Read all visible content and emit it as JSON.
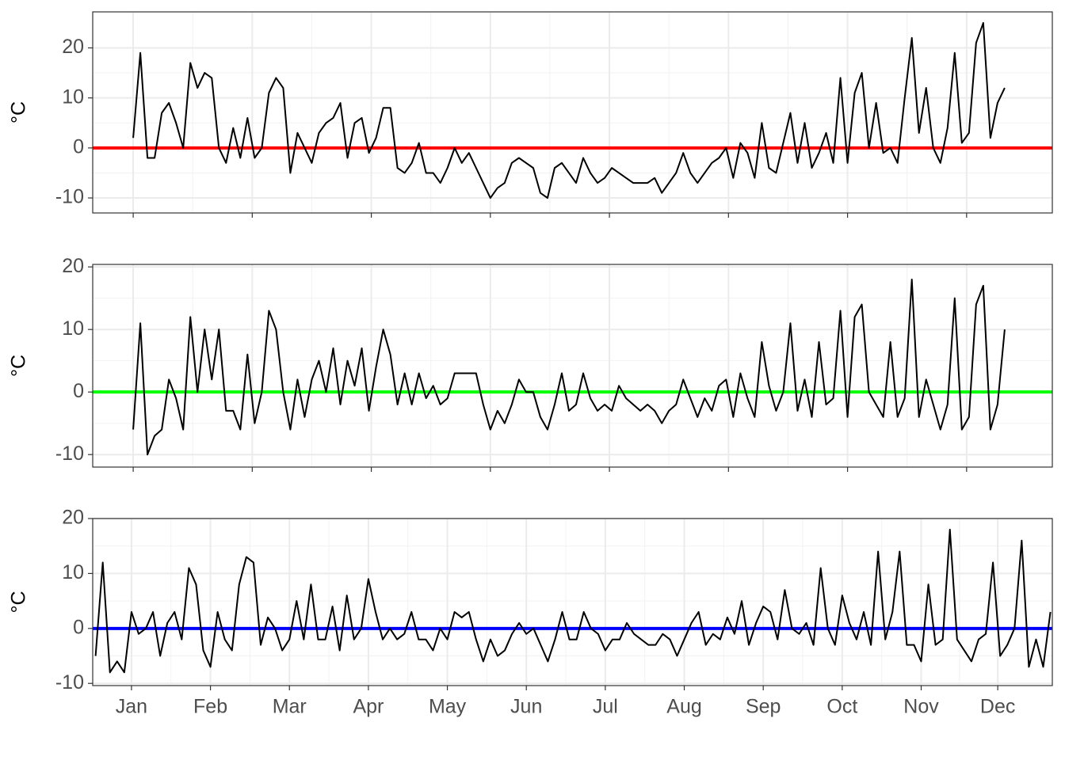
{
  "chart_data": [
    {
      "type": "line",
      "y_label": "°C",
      "grid": true,
      "xlim": [
        -17,
        386
      ],
      "xticks": [
        0,
        50,
        100,
        150,
        200,
        250,
        300,
        350
      ],
      "ylim": [
        -13,
        27.2
      ],
      "yticks": [
        -10,
        0,
        10,
        20
      ],
      "hline": {
        "value": 0,
        "color": "#ff0000"
      },
      "x": [
        0,
        3,
        6,
        9,
        12,
        15,
        18,
        21,
        24,
        27,
        30,
        33,
        36,
        39,
        42,
        45,
        48,
        51,
        54,
        57,
        60,
        63,
        66,
        69,
        72,
        75,
        78,
        81,
        84,
        87,
        90,
        93,
        96,
        99,
        102,
        105,
        108,
        111,
        114,
        117,
        120,
        123,
        126,
        129,
        132,
        135,
        138,
        141,
        144,
        147,
        150,
        153,
        156,
        159,
        162,
        165,
        168,
        171,
        174,
        177,
        180,
        183,
        186,
        189,
        192,
        195,
        198,
        201,
        204,
        207,
        210,
        213,
        216,
        219,
        222,
        225,
        228,
        231,
        234,
        237,
        240,
        243,
        246,
        249,
        252,
        255,
        258,
        261,
        264,
        267,
        270,
        273,
        276,
        279,
        282,
        285,
        288,
        291,
        294,
        297,
        300,
        303,
        306,
        309,
        312,
        315,
        318,
        321,
        324,
        327,
        330,
        333,
        336,
        339,
        342,
        345,
        348,
        351,
        354,
        357,
        360,
        363,
        366
      ],
      "series": [
        {
          "color": "#000000",
          "values": [
            2,
            19,
            -2,
            -2,
            7,
            9,
            5,
            0,
            17,
            12,
            15,
            14,
            0,
            -3,
            4,
            -2,
            6,
            -2,
            0,
            11,
            14,
            12,
            -5,
            3,
            0,
            -3,
            3,
            5,
            6,
            9,
            -2,
            5,
            6,
            -1,
            2,
            8,
            8,
            -4,
            -5,
            -3,
            1,
            -5,
            -5,
            -7,
            -4,
            0,
            -3,
            -1,
            -4,
            -7,
            -10,
            -8,
            -7,
            -3,
            -2,
            -3,
            -4,
            -9,
            -10,
            -4,
            -3,
            -5,
            -7,
            -2,
            -5,
            -7,
            -6,
            -4,
            -5,
            -6,
            -7,
            -7,
            -7,
            -6,
            -9,
            -7,
            -5,
            -1,
            -5,
            -7,
            -5,
            -3,
            -2,
            0,
            -6,
            1,
            -1,
            -6,
            5,
            -4,
            -5,
            1,
            7,
            -3,
            5,
            -4,
            -1,
            3,
            -3,
            14,
            -3,
            11,
            15,
            0,
            9,
            -1,
            0,
            -3,
            10,
            22,
            3,
            12,
            0,
            -3,
            4,
            19,
            1,
            3,
            21,
            25,
            2,
            9,
            12
          ]
        }
      ]
    },
    {
      "type": "line",
      "y_label": "°C",
      "grid": true,
      "xlim": [
        -17,
        386
      ],
      "xticks": [
        0,
        50,
        100,
        150,
        200,
        250,
        300,
        350
      ],
      "ylim": [
        -12,
        20.4
      ],
      "yticks": [
        -10,
        0,
        10,
        20
      ],
      "hline": {
        "value": 0,
        "color": "#00ff00"
      },
      "x": [
        0,
        3,
        6,
        9,
        12,
        15,
        18,
        21,
        24,
        27,
        30,
        33,
        36,
        39,
        42,
        45,
        48,
        51,
        54,
        57,
        60,
        63,
        66,
        69,
        72,
        75,
        78,
        81,
        84,
        87,
        90,
        93,
        96,
        99,
        102,
        105,
        108,
        111,
        114,
        117,
        120,
        123,
        126,
        129,
        132,
        135,
        138,
        141,
        144,
        147,
        150,
        153,
        156,
        159,
        162,
        165,
        168,
        171,
        174,
        177,
        180,
        183,
        186,
        189,
        192,
        195,
        198,
        201,
        204,
        207,
        210,
        213,
        216,
        219,
        222,
        225,
        228,
        231,
        234,
        237,
        240,
        243,
        246,
        249,
        252,
        255,
        258,
        261,
        264,
        267,
        270,
        273,
        276,
        279,
        282,
        285,
        288,
        291,
        294,
        297,
        300,
        303,
        306,
        309,
        312,
        315,
        318,
        321,
        324,
        327,
        330,
        333,
        336,
        339,
        342,
        345,
        348,
        351,
        354,
        357,
        360,
        363,
        366
      ],
      "series": [
        {
          "color": "#000000",
          "values": [
            -6,
            11,
            -10,
            -7,
            -6,
            2,
            -1,
            -6,
            12,
            0,
            10,
            2,
            10,
            -3,
            -3,
            -6,
            6,
            -5,
            0,
            13,
            10,
            0,
            -6,
            2,
            -4,
            2,
            5,
            0,
            7,
            -2,
            5,
            1,
            7,
            -3,
            4,
            10,
            6,
            -2,
            3,
            -2,
            3,
            -1,
            1,
            -2,
            -1,
            3,
            3,
            3,
            3,
            -2,
            -6,
            -3,
            -5,
            -2,
            2,
            0,
            0,
            -4,
            -6,
            -2,
            3,
            -3,
            -2,
            3,
            -1,
            -3,
            -2,
            -3,
            1,
            -1,
            -2,
            -3,
            -2,
            -3,
            -5,
            -3,
            -2,
            2,
            -1,
            -4,
            -1,
            -3,
            1,
            2,
            -4,
            3,
            -1,
            -4,
            8,
            1,
            -3,
            0,
            11,
            -3,
            2,
            -4,
            8,
            -2,
            -1,
            13,
            -4,
            12,
            14,
            0,
            -2,
            -4,
            8,
            -4,
            -1,
            18,
            -4,
            2,
            -2,
            -6,
            -2,
            15,
            -6,
            -4,
            14,
            17,
            -6,
            -2,
            10
          ]
        }
      ]
    },
    {
      "type": "line",
      "y_label": "°C",
      "grid": true,
      "xlim": [
        -16.2,
        384.8
      ],
      "xticks": [
        {
          "value": 0,
          "label": "Jan"
        },
        {
          "value": 33,
          "label": "Feb"
        },
        {
          "value": 66,
          "label": "Mar"
        },
        {
          "value": 99,
          "label": "Apr"
        },
        {
          "value": 132,
          "label": "May"
        },
        {
          "value": 165,
          "label": "Jun"
        },
        {
          "value": 198,
          "label": "Jul"
        },
        {
          "value": 231,
          "label": "Aug"
        },
        {
          "value": 264,
          "label": "Sep"
        },
        {
          "value": 297,
          "label": "Oct"
        },
        {
          "value": 330,
          "label": "Nov"
        },
        {
          "value": 362,
          "label": "Dec"
        }
      ],
      "ylim": [
        -10.4,
        20
      ],
      "yticks": [
        -10,
        0,
        10,
        20
      ],
      "hline": {
        "value": 0,
        "color": "#0000ff"
      },
      "x": [
        -15,
        -12,
        -9,
        -6,
        -3,
        0,
        3,
        6,
        9,
        12,
        15,
        18,
        21,
        24,
        27,
        30,
        33,
        36,
        39,
        42,
        45,
        48,
        51,
        54,
        57,
        60,
        63,
        66,
        69,
        72,
        75,
        78,
        81,
        84,
        87,
        90,
        93,
        96,
        99,
        102,
        105,
        108,
        111,
        114,
        117,
        120,
        123,
        126,
        129,
        132,
        135,
        138,
        141,
        144,
        147,
        150,
        153,
        156,
        159,
        162,
        165,
        168,
        171,
        174,
        177,
        180,
        183,
        186,
        189,
        192,
        195,
        198,
        201,
        204,
        207,
        210,
        213,
        216,
        219,
        222,
        225,
        228,
        231,
        234,
        237,
        240,
        243,
        246,
        249,
        252,
        255,
        258,
        261,
        264,
        267,
        270,
        273,
        276,
        279,
        282,
        285,
        288,
        291,
        294,
        297,
        300,
        303,
        306,
        309,
        312,
        315,
        318,
        321,
        324,
        327,
        330,
        333,
        336,
        339,
        342,
        345,
        348,
        351,
        354,
        357,
        360,
        363,
        366,
        369,
        372,
        375,
        378,
        381,
        384
      ],
      "series": [
        {
          "color": "#000000",
          "values": [
            -5,
            12,
            -8,
            -6,
            -8,
            3,
            -1,
            0,
            3,
            -5,
            1,
            3,
            -2,
            11,
            8,
            -4,
            -7,
            3,
            -2,
            -4,
            8,
            13,
            12,
            -3,
            2,
            0,
            -4,
            -2,
            5,
            -2,
            8,
            -2,
            -2,
            4,
            -4,
            6,
            -2,
            0,
            9,
            3,
            -2,
            0,
            -2,
            -1,
            3,
            -2,
            -2,
            -4,
            0,
            -2,
            3,
            2,
            3,
            -2,
            -6,
            -2,
            -5,
            -4,
            -1,
            1,
            -1,
            0,
            -3,
            -6,
            -2,
            3,
            -2,
            -2,
            3,
            0,
            -1,
            -4,
            -2,
            -2,
            1,
            -1,
            -2,
            -3,
            -3,
            -1,
            -2,
            -5,
            -2,
            1,
            3,
            -3,
            -1,
            -2,
            2,
            -1,
            5,
            -3,
            1,
            4,
            3,
            -2,
            7,
            0,
            -1,
            1,
            -3,
            11,
            0,
            -3,
            6,
            1,
            -2,
            3,
            -3,
            14,
            -2,
            3,
            14,
            -3,
            -3,
            -6,
            8,
            -3,
            -2,
            18,
            -2,
            -4,
            -6,
            -2,
            -1,
            12,
            -5,
            -3,
            0,
            16,
            -7,
            -2,
            -7,
            3
          ]
        }
      ]
    }
  ]
}
